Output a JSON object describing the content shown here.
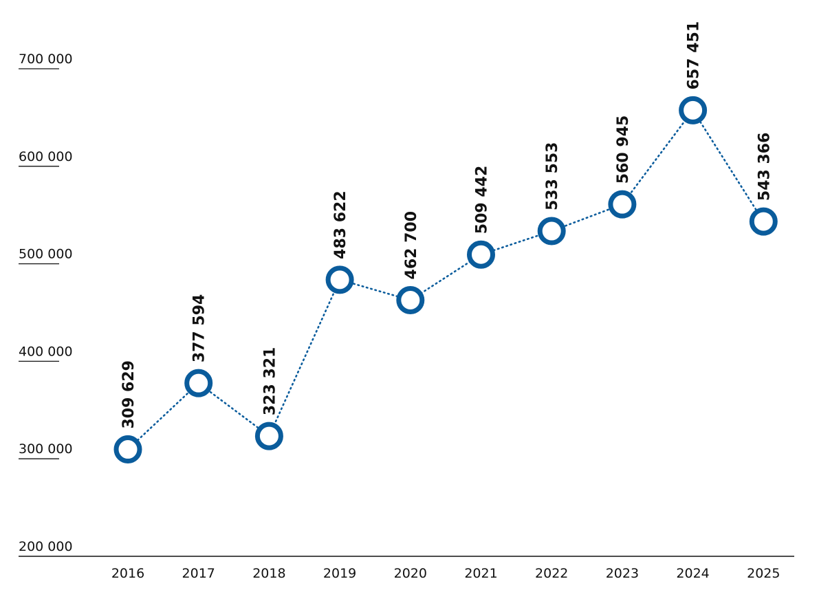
{
  "chart_data": {
    "type": "line",
    "x": [
      "2016",
      "2017",
      "2018",
      "2019",
      "2020",
      "2021",
      "2022",
      "2023",
      "2024",
      "2025"
    ],
    "values": [
      309629,
      377594,
      323321,
      483622,
      462700,
      509442,
      533553,
      560945,
      657451,
      543366
    ],
    "data_labels": [
      "309 629",
      "377 594",
      "323 321",
      "483 622",
      "462 700",
      "509 442",
      "533 553",
      "560 945",
      "657 451",
      "543 366"
    ],
    "ylim": [
      200000,
      700000
    ],
    "y_ticks": [
      {
        "value": 700000,
        "label": "700 000"
      },
      {
        "value": 600000,
        "label": "600 000"
      },
      {
        "value": 500000,
        "label": "500 000"
      },
      {
        "value": 400000,
        "label": "400 000"
      },
      {
        "value": 300000,
        "label": "300 000"
      },
      {
        "value": 200000,
        "label": "200 000"
      }
    ],
    "line_style": "dotted",
    "marker": "hollow-circle",
    "grid": false,
    "colors": {
      "series": "#0a5c9c",
      "text": "#111111",
      "axis": "#111111"
    }
  }
}
